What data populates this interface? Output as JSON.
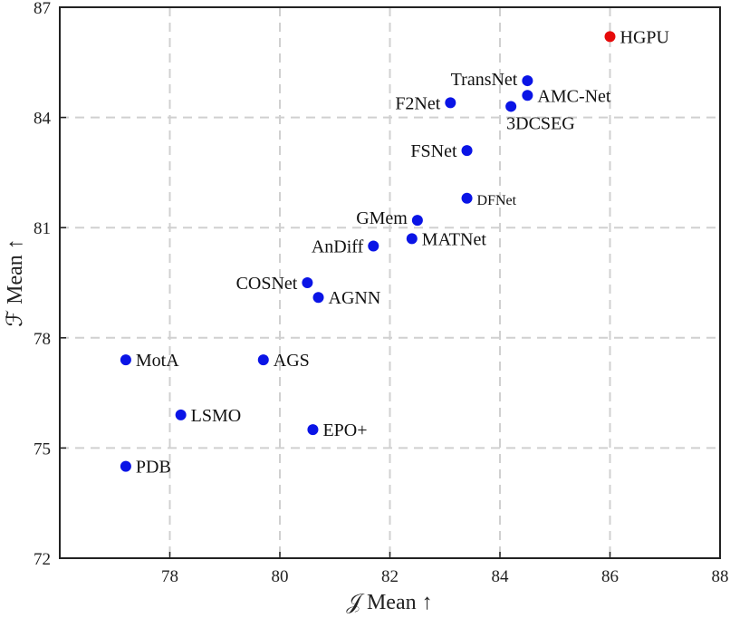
{
  "chart_data": {
    "type": "scatter",
    "xlabel": "𝒥 Mean ↑",
    "ylabel": "ℱ Mean ↑",
    "xlim": [
      76,
      88
    ],
    "ylim": [
      72,
      87
    ],
    "x_ticks": [
      78,
      80,
      82,
      84,
      86,
      88
    ],
    "y_ticks": [
      72,
      75,
      78,
      81,
      84,
      87
    ],
    "grid": true,
    "grid_style": "dashed",
    "colors": {
      "default": "#0a14e6",
      "highlight": "#e60a0a",
      "grid": "#d0d0d0",
      "axis": "#222222"
    },
    "points": [
      {
        "label": "HGPU",
        "x": 86.0,
        "y": 86.2,
        "highlight": true
      },
      {
        "label": "TransNet",
        "x": 84.5,
        "y": 85.0
      },
      {
        "label": "AMC-Net",
        "x": 84.5,
        "y": 84.6
      },
      {
        "label": "F2Net",
        "x": 83.1,
        "y": 84.4
      },
      {
        "label": "3DCSEG",
        "x": 84.2,
        "y": 84.3
      },
      {
        "label": "FSNet",
        "x": 83.4,
        "y": 83.1
      },
      {
        "label": "DFNet",
        "x": 83.4,
        "y": 81.8
      },
      {
        "label": "GMem",
        "x": 82.5,
        "y": 81.2
      },
      {
        "label": "MATNet",
        "x": 82.4,
        "y": 80.7
      },
      {
        "label": "AnDiff",
        "x": 81.7,
        "y": 80.5
      },
      {
        "label": "COSNet",
        "x": 80.5,
        "y": 79.5
      },
      {
        "label": "AGNN",
        "x": 80.7,
        "y": 79.1
      },
      {
        "label": "MotA",
        "x": 77.2,
        "y": 77.4
      },
      {
        "label": "AGS",
        "x": 79.7,
        "y": 77.4
      },
      {
        "label": "LSMO",
        "x": 78.2,
        "y": 75.9
      },
      {
        "label": "EPO+",
        "x": 80.6,
        "y": 75.5
      },
      {
        "label": "PDB",
        "x": 77.2,
        "y": 74.5
      }
    ]
  }
}
